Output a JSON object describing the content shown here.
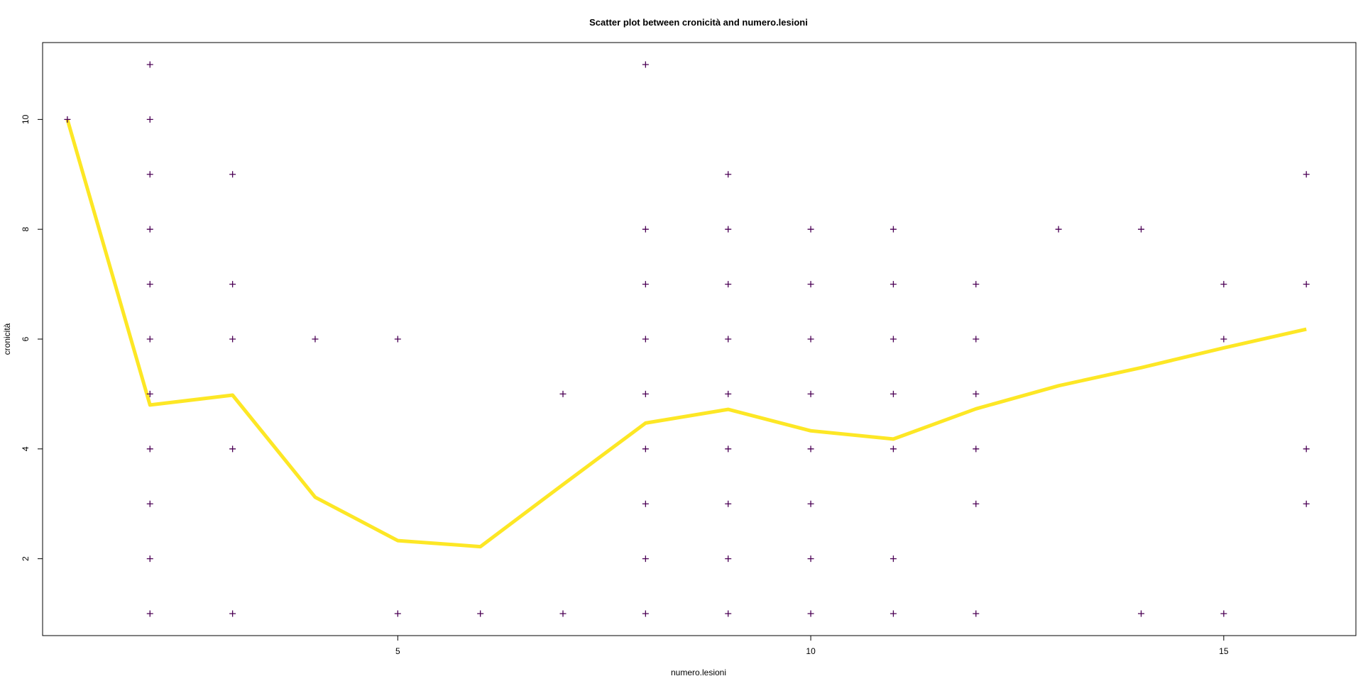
{
  "chart_data": {
    "type": "scatter",
    "title": "Scatter plot between cronicità and numero.lesioni",
    "xlabel": "numero.lesioni",
    "ylabel": "cronicità",
    "xlim": [
      0.7,
      16.6
    ],
    "ylim": [
      0.6,
      11.4
    ],
    "x_ticks": [
      5,
      10,
      15
    ],
    "y_ticks": [
      2,
      4,
      6,
      8,
      10
    ],
    "grid": false,
    "point_symbol": "plus",
    "point_color": "#4b0055",
    "line_color": "#fde725",
    "points": [
      [
        1,
        10
      ],
      [
        2,
        11
      ],
      [
        2,
        10
      ],
      [
        2,
        9
      ],
      [
        2,
        8
      ],
      [
        2,
        7
      ],
      [
        2,
        6
      ],
      [
        2,
        5
      ],
      [
        2,
        4
      ],
      [
        2,
        3
      ],
      [
        2,
        2
      ],
      [
        2,
        1
      ],
      [
        3,
        9
      ],
      [
        3,
        7
      ],
      [
        3,
        6
      ],
      [
        3,
        4
      ],
      [
        3,
        1
      ],
      [
        4,
        6
      ],
      [
        5,
        6
      ],
      [
        5,
        1
      ],
      [
        6,
        1
      ],
      [
        7,
        5
      ],
      [
        7,
        1
      ],
      [
        8,
        11
      ],
      [
        8,
        8
      ],
      [
        8,
        7
      ],
      [
        8,
        6
      ],
      [
        8,
        5
      ],
      [
        8,
        4
      ],
      [
        8,
        3
      ],
      [
        8,
        2
      ],
      [
        8,
        1
      ],
      [
        9,
        9
      ],
      [
        9,
        8
      ],
      [
        9,
        7
      ],
      [
        9,
        6
      ],
      [
        9,
        5
      ],
      [
        9,
        4
      ],
      [
        9,
        3
      ],
      [
        9,
        2
      ],
      [
        9,
        1
      ],
      [
        10,
        8
      ],
      [
        10,
        7
      ],
      [
        10,
        6
      ],
      [
        10,
        5
      ],
      [
        10,
        4
      ],
      [
        10,
        3
      ],
      [
        10,
        2
      ],
      [
        10,
        1
      ],
      [
        11,
        8
      ],
      [
        11,
        7
      ],
      [
        11,
        6
      ],
      [
        11,
        5
      ],
      [
        11,
        4
      ],
      [
        11,
        2
      ],
      [
        11,
        1
      ],
      [
        12,
        7
      ],
      [
        12,
        6
      ],
      [
        12,
        5
      ],
      [
        12,
        4
      ],
      [
        12,
        3
      ],
      [
        12,
        1
      ],
      [
        13,
        8
      ],
      [
        14,
        8
      ],
      [
        14,
        1
      ],
      [
        15,
        7
      ],
      [
        15,
        6
      ],
      [
        15,
        1
      ],
      [
        16,
        9
      ],
      [
        16,
        7
      ],
      [
        16,
        4
      ],
      [
        16,
        3
      ]
    ],
    "smooth_line": [
      [
        1,
        10.0
      ],
      [
        2,
        4.8
      ],
      [
        3,
        4.98
      ],
      [
        4,
        3.12
      ],
      [
        5,
        2.33
      ],
      [
        6,
        2.22
      ],
      [
        7,
        3.35
      ],
      [
        8,
        4.47
      ],
      [
        9,
        4.72
      ],
      [
        10,
        4.33
      ],
      [
        11,
        4.18
      ],
      [
        12,
        4.73
      ],
      [
        13,
        5.15
      ],
      [
        14,
        5.48
      ],
      [
        15,
        5.84
      ],
      [
        16,
        6.18
      ]
    ]
  }
}
